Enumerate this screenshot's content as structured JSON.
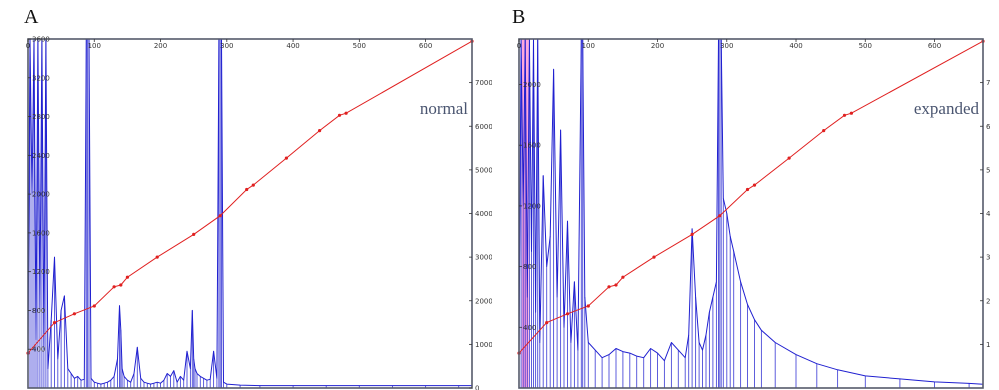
{
  "chart_data": [
    {
      "type": "line",
      "panel_label": "A",
      "annotation": "normal",
      "colors": {
        "spectrum": "#2020d0",
        "calibration": "#e02020",
        "frame": "#555a6a"
      },
      "x_top_ticks": [
        0,
        100,
        200,
        300,
        400,
        500,
        600
      ],
      "xlim": [
        0,
        670
      ],
      "y_left_ticks": [
        400,
        800,
        1200,
        1600,
        2000,
        2400,
        2800,
        3200,
        3600
      ],
      "y_left_lim": [
        0,
        3600
      ],
      "y_right_ticks": [
        0,
        1000,
        2000,
        3000,
        4000,
        5000,
        6000,
        7000
      ],
      "y_right_lim": [
        0,
        8000
      ],
      "series": [
        {
          "role": "spectrum",
          "axis": "left",
          "x": [
            0,
            3,
            6,
            9,
            12,
            15,
            18,
            21,
            24,
            27,
            30,
            35,
            40,
            45,
            50,
            55,
            60,
            65,
            70,
            75,
            80,
            85,
            88,
            90,
            92,
            95,
            100,
            105,
            110,
            115,
            120,
            125,
            130,
            135,
            138,
            140,
            142,
            145,
            150,
            155,
            160,
            165,
            170,
            175,
            180,
            185,
            190,
            195,
            200,
            205,
            210,
            215,
            220,
            225,
            230,
            235,
            240,
            245,
            248,
            250,
            252,
            255,
            260,
            265,
            270,
            275,
            280,
            285,
            288,
            290,
            292,
            295,
            300,
            320,
            350,
            400,
            450,
            500,
            550,
            600,
            650,
            670
          ],
          "values": [
            300,
            3600,
            2000,
            3600,
            500,
            3600,
            800,
            3600,
            400,
            3600,
            200,
            700,
            1350,
            300,
            800,
            950,
            200,
            150,
            100,
            120,
            80,
            90,
            3600,
            3600,
            3600,
            100,
            60,
            50,
            40,
            50,
            60,
            80,
            120,
            300,
            850,
            600,
            200,
            120,
            80,
            60,
            150,
            420,
            100,
            60,
            50,
            40,
            50,
            60,
            50,
            80,
            150,
            120,
            180,
            60,
            120,
            80,
            380,
            200,
            800,
            300,
            200,
            150,
            120,
            100,
            80,
            90,
            380,
            100,
            3600,
            3600,
            3600,
            60,
            40,
            30,
            25,
            25,
            25,
            25,
            25,
            25,
            25,
            25
          ]
        },
        {
          "role": "calibration",
          "axis": "right",
          "x": [
            0,
            40,
            70,
            100,
            130,
            140,
            150,
            195,
            250,
            290,
            330,
            340,
            390,
            440,
            470,
            480,
            670
          ],
          "values": [
            800,
            1500,
            1700,
            1880,
            2320,
            2360,
            2540,
            3000,
            3520,
            3950,
            4550,
            4650,
            5270,
            5900,
            6250,
            6300,
            7950
          ]
        }
      ]
    },
    {
      "type": "line",
      "panel_label": "B",
      "annotation": "expanded",
      "colors": {
        "spectrum": "#2020d0",
        "calibration": "#e02020",
        "highlight": "#ff60c0",
        "frame": "#555a6a"
      },
      "x_top_ticks": [
        0,
        100,
        200,
        300,
        400,
        500,
        600
      ],
      "xlim": [
        0,
        670
      ],
      "y_left_ticks": [
        400,
        800,
        1200,
        1600,
        2000
      ],
      "y_left_lim": [
        0,
        2300
      ],
      "y_right_ticks": [
        1,
        2,
        3,
        4,
        5,
        6,
        7
      ],
      "y_right_lim": [
        0,
        8
      ],
      "series": [
        {
          "role": "spectrum",
          "axis": "left",
          "x": [
            0,
            3,
            6,
            9,
            12,
            15,
            18,
            21,
            24,
            27,
            30,
            35,
            40,
            45,
            50,
            55,
            60,
            65,
            70,
            75,
            80,
            85,
            90,
            92,
            95,
            100,
            110,
            120,
            130,
            140,
            150,
            160,
            170,
            180,
            190,
            200,
            210,
            220,
            230,
            240,
            245,
            250,
            255,
            260,
            265,
            270,
            275,
            280,
            285,
            288,
            290,
            292,
            295,
            300,
            305,
            310,
            320,
            330,
            340,
            350,
            370,
            400,
            430,
            460,
            500,
            550,
            600,
            650,
            670
          ],
          "values": [
            200,
            2300,
            1200,
            2300,
            600,
            2300,
            900,
            2300,
            500,
            2300,
            300,
            1400,
            800,
            1000,
            2100,
            600,
            1700,
            400,
            1100,
            300,
            700,
            250,
            2300,
            2300,
            600,
            300,
            250,
            200,
            220,
            260,
            240,
            230,
            210,
            200,
            260,
            230,
            180,
            300,
            250,
            200,
            350,
            1050,
            600,
            300,
            250,
            350,
            500,
            600,
            700,
            2300,
            2300,
            2300,
            1250,
            1150,
            1000,
            900,
            700,
            550,
            450,
            380,
            300,
            220,
            160,
            120,
            80,
            60,
            40,
            30,
            25
          ]
        },
        {
          "role": "calibration",
          "axis": "right",
          "x": [
            0,
            40,
            70,
            100,
            130,
            140,
            150,
            195,
            250,
            290,
            330,
            340,
            390,
            440,
            470,
            480,
            670
          ],
          "values": [
            0.8,
            1.5,
            1.7,
            1.88,
            2.32,
            2.36,
            2.54,
            3.0,
            3.52,
            3.95,
            4.55,
            4.65,
            5.27,
            5.9,
            6.25,
            6.3,
            7.95
          ]
        }
      ]
    }
  ]
}
